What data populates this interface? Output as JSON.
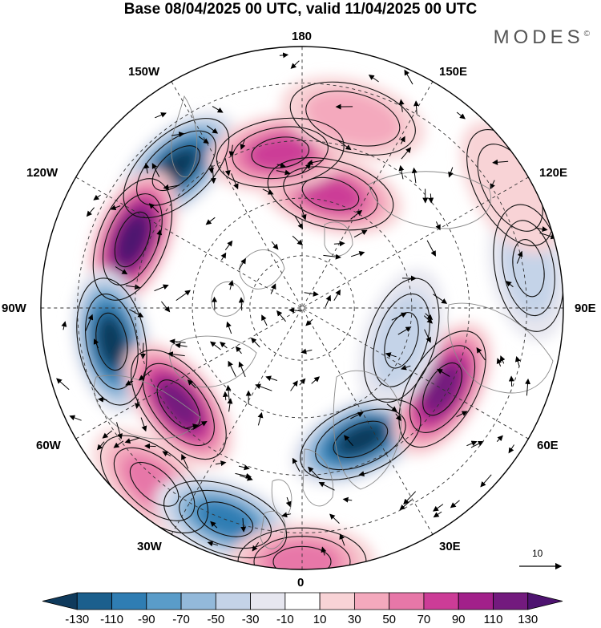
{
  "title": "Base 08/04/2025 00 UTC, valid 11/04/2025 00 UTC",
  "brand": "MODES",
  "brand_mark": "©",
  "longitude_labels": {
    "top": "180",
    "bottom": "0",
    "left": "90W",
    "right": "90E",
    "upper_left_1": "150W",
    "upper_left_2": "120W",
    "upper_right_1": "150E",
    "upper_right_2": "120E",
    "lower_left_1": "60W",
    "lower_left_2": "30W",
    "lower_right_1": "60E",
    "lower_right_2": "30E"
  },
  "reference_vector": {
    "label": "10"
  },
  "colorbar": {
    "labels": [
      "-130",
      "-110",
      "-90",
      "-70",
      "-50",
      "-30",
      "-10",
      "10",
      "30",
      "50",
      "70",
      "90",
      "110",
      "130"
    ],
    "colors": [
      "#0f3a5c",
      "#1b5f8d",
      "#2f7db3",
      "#5a9cc9",
      "#93b9da",
      "#c4d3e8",
      "#e6e6ef",
      "#ffffff",
      "#f8d3d6",
      "#f4a9bd",
      "#e777a8",
      "#cc3c97",
      "#a2208a",
      "#731a7e",
      "#4e1370"
    ]
  },
  "anomalies": [
    {
      "lon": -138,
      "r": 0.72,
      "value": -130
    },
    {
      "lon": -112,
      "r": 0.7,
      "value": 140
    },
    {
      "lon": -80,
      "r": 0.74,
      "value": -130
    },
    {
      "lon": -52,
      "r": 0.6,
      "value": 120
    },
    {
      "lon": -40,
      "r": 0.88,
      "value": 50
    },
    {
      "lon": -20,
      "r": 0.86,
      "value": -90
    },
    {
      "lon": 0,
      "r": 0.97,
      "value": 60
    },
    {
      "lon": 24,
      "r": 0.55,
      "value": -130
    },
    {
      "lon": 60,
      "r": 0.62,
      "value": 120
    },
    {
      "lon": 100,
      "r": 0.88,
      "value": -40
    },
    {
      "lon": 72,
      "r": 0.4,
      "value": -40
    },
    {
      "lon": 120,
      "r": 0.92,
      "value": 20
    },
    {
      "lon": 166,
      "r": 0.45,
      "value": 70
    },
    {
      "lon": -172,
      "r": 0.6,
      "value": 80
    },
    {
      "lon": 165,
      "r": 0.75,
      "value": 30
    }
  ],
  "map_flags": {
    "projection": "north polar stereographic",
    "graticule": "dashed",
    "coastlines": true,
    "wind_vectors": true
  }
}
